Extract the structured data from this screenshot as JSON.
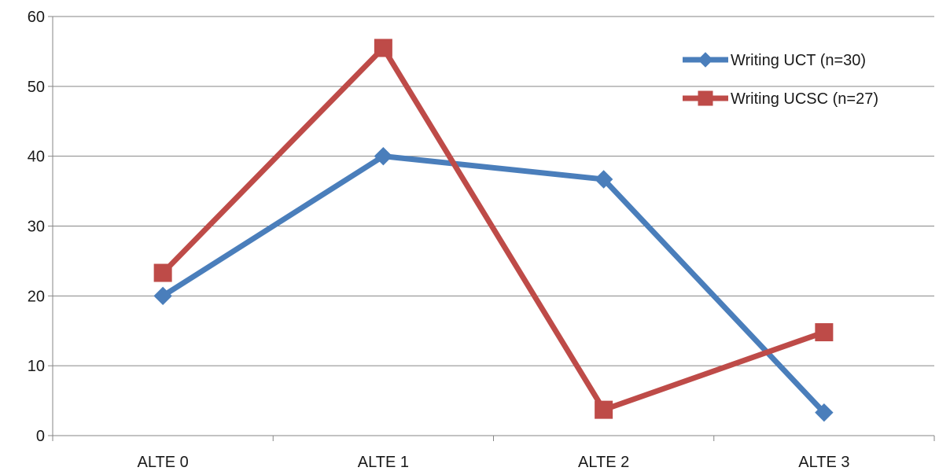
{
  "chart_data": {
    "type": "line",
    "title": "",
    "xlabel": "",
    "ylabel": "",
    "categories": [
      "ALTE 0",
      "ALTE 1",
      "ALTE 2",
      "ALTE 3"
    ],
    "ylim": [
      0,
      60
    ],
    "yticks": [
      0,
      10,
      20,
      30,
      40,
      50,
      60
    ],
    "grid": true,
    "legend_position": "top-right",
    "series": [
      {
        "name": "Writing UCT (n=30)",
        "values": [
          20.0,
          40.0,
          36.7,
          3.3
        ],
        "color": "#4a7ebb",
        "marker": "diamond"
      },
      {
        "name": "Writing UCSC (n=27)",
        "values": [
          23.3,
          55.5,
          3.7,
          14.8
        ],
        "color": "#be4b48",
        "marker": "square"
      }
    ]
  }
}
